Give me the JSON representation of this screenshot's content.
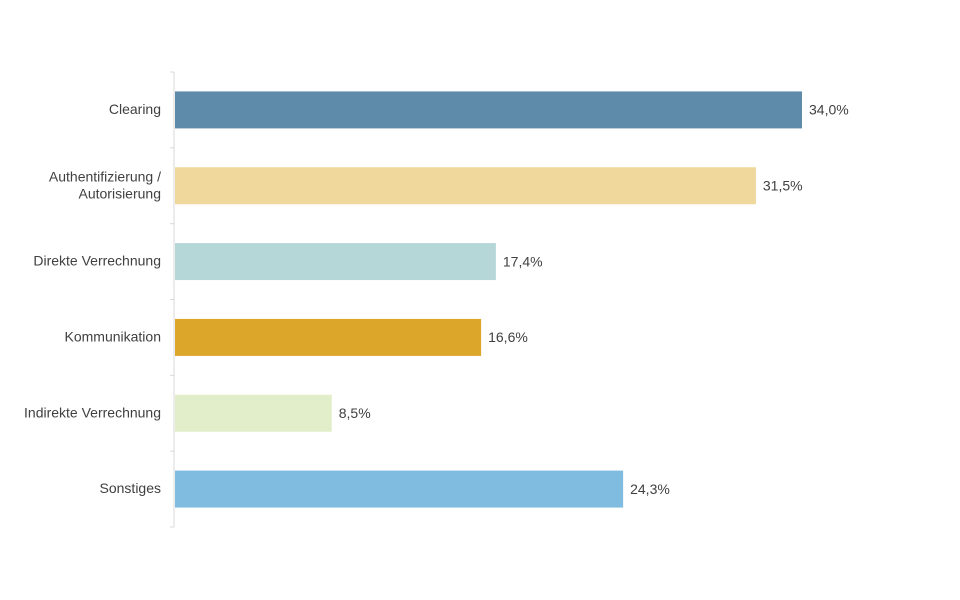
{
  "chart_data": {
    "type": "bar",
    "orientation": "horizontal",
    "categories": [
      [
        "Clearing"
      ],
      [
        "Authentifizierung /",
        "Autorisierung"
      ],
      [
        "Direkte Verrechnung"
      ],
      [
        "Kommunikation"
      ],
      [
        "Indirekte Verrechnung"
      ],
      [
        "Sonstiges"
      ]
    ],
    "values": [
      34.0,
      31.5,
      17.4,
      16.6,
      8.5,
      24.3
    ],
    "value_labels": [
      "34,0%",
      "31,5%",
      "17,4%",
      "16,6%",
      "8,5%",
      "24,3%"
    ],
    "colors": [
      "#5f8bab",
      "#f0d79c",
      "#b5d7d8",
      "#dca62a",
      "#e2edc9",
      "#80bce0"
    ],
    "xlim": [
      0,
      34.0
    ],
    "grid": false,
    "title": "",
    "xlabel": "",
    "ylabel": ""
  }
}
